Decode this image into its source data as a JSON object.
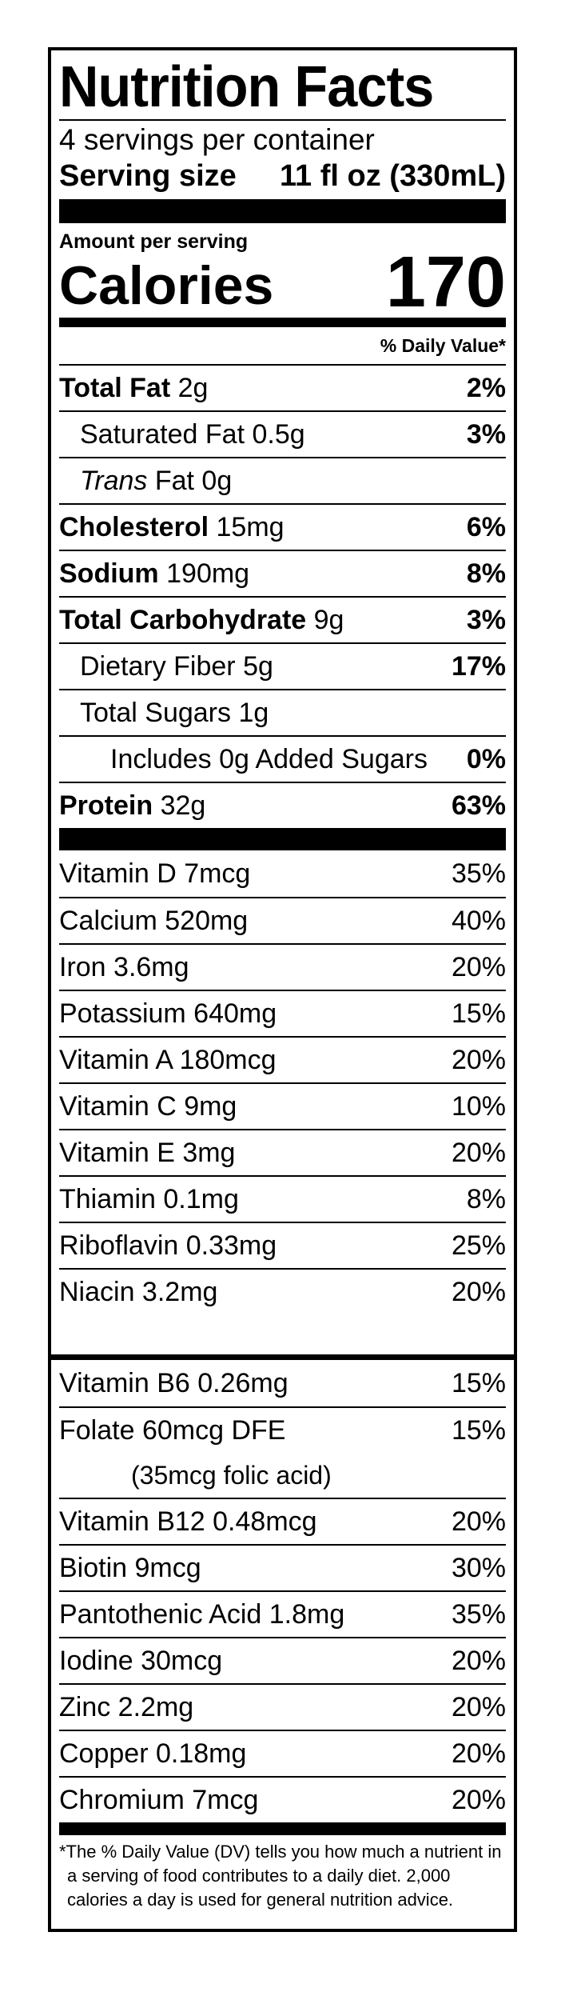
{
  "title": "Nutrition Facts",
  "servings_per_container": "4 servings per container",
  "serving_size": {
    "label": "Serving size",
    "value": "11 fl oz (330mL)"
  },
  "amount_per_serving": "Amount per serving",
  "calories": {
    "label": "Calories",
    "value": "170"
  },
  "daily_value_header": "% Daily Value*",
  "nutrients": [
    {
      "name": "Total Fat",
      "amount": "2g",
      "pct": "2%",
      "bold": true,
      "level": 0
    },
    {
      "name": "Saturated Fat",
      "amount": "0.5g",
      "pct": "3%",
      "bold": false,
      "level": 1
    },
    {
      "name_italic": "Trans",
      "name": "Fat",
      "amount": "0g",
      "pct": "",
      "bold": false,
      "level": 1
    },
    {
      "name": "Cholesterol",
      "amount": "15mg",
      "pct": "6%",
      "bold": true,
      "level": 0
    },
    {
      "name": "Sodium",
      "amount": "190mg",
      "pct": "8%",
      "bold": true,
      "level": 0
    },
    {
      "name": "Total Carbohydrate",
      "amount": "9g",
      "pct": "3%",
      "bold": true,
      "level": 0
    },
    {
      "name": "Dietary Fiber",
      "amount": "5g",
      "pct": "17%",
      "bold": false,
      "level": 1
    },
    {
      "name": "Total Sugars",
      "amount": "1g",
      "pct": "",
      "bold": false,
      "level": 1
    },
    {
      "name": "Includes 0g Added Sugars",
      "amount": "",
      "pct": "0%",
      "bold": false,
      "level": 2
    },
    {
      "name": "Protein",
      "amount": "32g",
      "pct": "63%",
      "bold": true,
      "level": 0
    }
  ],
  "vitamins_top": [
    {
      "label": "Vitamin D 7mcg",
      "pct": "35%"
    },
    {
      "label": "Calcium 520mg",
      "pct": "40%"
    },
    {
      "label": "Iron 3.6mg",
      "pct": "20%"
    },
    {
      "label": "Potassium 640mg",
      "pct": "15%"
    },
    {
      "label": "Vitamin A 180mcg",
      "pct": "20%"
    },
    {
      "label": "Vitamin C 9mg",
      "pct": "10%"
    },
    {
      "label": "Vitamin E 3mg",
      "pct": "20%"
    },
    {
      "label": "Thiamin 0.1mg",
      "pct": "8%"
    },
    {
      "label": "Riboflavin 0.33mg",
      "pct": "25%"
    },
    {
      "label": "Niacin 3.2mg",
      "pct": "20%"
    }
  ],
  "vitamins_bottom": [
    {
      "label": "Vitamin B6 0.26mg",
      "pct": "15%"
    },
    {
      "label": "Folate 60mcg DFE",
      "pct": "15%"
    },
    {
      "label": "Vitamin B12 0.48mcg",
      "pct": "20%"
    },
    {
      "label": "Biotin 9mcg",
      "pct": "30%"
    },
    {
      "label": "Pantothenic Acid 1.8mg",
      "pct": "35%"
    },
    {
      "label": "Iodine 30mcg",
      "pct": "20%"
    },
    {
      "label": "Zinc 2.2mg",
      "pct": "20%"
    },
    {
      "label": "Copper 0.18mg",
      "pct": "20%"
    },
    {
      "label": "Chromium 7mcg",
      "pct": "20%"
    }
  ],
  "folic_acid_note": "(35mcg folic acid)",
  "footnote": "*The % Daily Value (DV) tells you how much a nutrient in a serving of food contributes to a daily diet. 2,000 calories a day is used for general nutrition advice."
}
